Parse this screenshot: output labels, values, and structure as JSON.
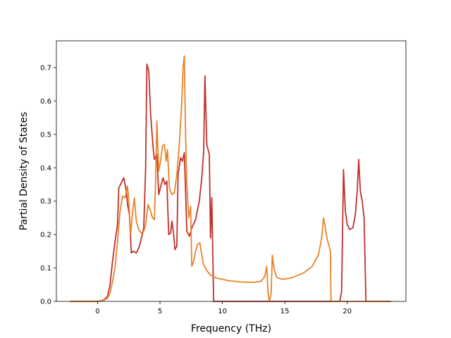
{
  "chart_data": {
    "type": "line",
    "xlabel": "Frequency (THz)",
    "ylabel": "Partial Density of States",
    "xlim": [
      -3.3,
      24.7
    ],
    "ylim": [
      0,
      0.78
    ],
    "xticks": [
      0,
      5,
      10,
      15,
      20
    ],
    "yticks": [
      0.0,
      0.1,
      0.2,
      0.3,
      0.4,
      0.5,
      0.6,
      0.7
    ],
    "grid": false,
    "legend": "none",
    "series": [
      {
        "color": "#c0302a",
        "points": [
          [
            -2.2,
            0
          ],
          [
            0.0,
            0
          ],
          [
            0.5,
            0.004
          ],
          [
            0.8,
            0.015
          ],
          [
            1.0,
            0.05
          ],
          [
            1.2,
            0.12
          ],
          [
            1.4,
            0.18
          ],
          [
            1.6,
            0.23
          ],
          [
            1.7,
            0.34
          ],
          [
            1.9,
            0.355
          ],
          [
            2.1,
            0.37
          ],
          [
            2.3,
            0.33
          ],
          [
            2.4,
            0.29
          ],
          [
            2.55,
            0.26
          ],
          [
            2.7,
            0.145
          ],
          [
            2.85,
            0.15
          ],
          [
            3.1,
            0.145
          ],
          [
            3.3,
            0.16
          ],
          [
            3.45,
            0.18
          ],
          [
            3.7,
            0.22
          ],
          [
            3.85,
            0.4
          ],
          [
            3.95,
            0.71
          ],
          [
            4.1,
            0.69
          ],
          [
            4.25,
            0.56
          ],
          [
            4.45,
            0.46
          ],
          [
            4.55,
            0.425
          ],
          [
            4.75,
            0.44
          ],
          [
            4.9,
            0.32
          ],
          [
            5.1,
            0.35
          ],
          [
            5.25,
            0.37
          ],
          [
            5.4,
            0.35
          ],
          [
            5.55,
            0.36
          ],
          [
            5.7,
            0.2
          ],
          [
            5.85,
            0.205
          ],
          [
            5.95,
            0.24
          ],
          [
            6.1,
            0.2
          ],
          [
            6.2,
            0.155
          ],
          [
            6.35,
            0.165
          ],
          [
            6.45,
            0.38
          ],
          [
            6.65,
            0.43
          ],
          [
            6.8,
            0.42
          ],
          [
            6.95,
            0.445
          ],
          [
            7.05,
            0.33
          ],
          [
            7.15,
            0.21
          ],
          [
            7.35,
            0.195
          ],
          [
            7.55,
            0.22
          ],
          [
            7.85,
            0.245
          ],
          [
            8.15,
            0.3
          ],
          [
            8.35,
            0.37
          ],
          [
            8.5,
            0.45
          ],
          [
            8.6,
            0.675
          ],
          [
            8.75,
            0.47
          ],
          [
            8.95,
            0.44
          ],
          [
            9.05,
            0.19
          ],
          [
            9.15,
            0.31
          ],
          [
            9.3,
            0.0
          ],
          [
            19.4,
            0.0
          ],
          [
            19.55,
            0.03
          ],
          [
            19.7,
            0.395
          ],
          [
            19.85,
            0.27
          ],
          [
            20.0,
            0.23
          ],
          [
            20.2,
            0.215
          ],
          [
            20.45,
            0.22
          ],
          [
            20.65,
            0.26
          ],
          [
            20.8,
            0.33
          ],
          [
            20.92,
            0.425
          ],
          [
            21.05,
            0.33
          ],
          [
            21.2,
            0.3
          ],
          [
            21.35,
            0.25
          ],
          [
            21.5,
            0.0
          ],
          [
            23.5,
            0.0
          ]
        ]
      },
      {
        "color": "#e8832a",
        "points": [
          [
            -2.2,
            0
          ],
          [
            0.0,
            0
          ],
          [
            0.5,
            0.003
          ],
          [
            0.8,
            0.01
          ],
          [
            1.0,
            0.025
          ],
          [
            1.2,
            0.06
          ],
          [
            1.4,
            0.1
          ],
          [
            1.6,
            0.18
          ],
          [
            1.8,
            0.27
          ],
          [
            2.0,
            0.315
          ],
          [
            2.2,
            0.31
          ],
          [
            2.4,
            0.345
          ],
          [
            2.5,
            0.3
          ],
          [
            2.65,
            0.2
          ],
          [
            2.8,
            0.265
          ],
          [
            2.95,
            0.31
          ],
          [
            3.1,
            0.24
          ],
          [
            3.3,
            0.215
          ],
          [
            3.5,
            0.205
          ],
          [
            3.7,
            0.21
          ],
          [
            3.85,
            0.23
          ],
          [
            4.05,
            0.29
          ],
          [
            4.25,
            0.27
          ],
          [
            4.4,
            0.25
          ],
          [
            4.55,
            0.245
          ],
          [
            4.65,
            0.36
          ],
          [
            4.75,
            0.54
          ],
          [
            4.9,
            0.39
          ],
          [
            5.05,
            0.42
          ],
          [
            5.2,
            0.465
          ],
          [
            5.35,
            0.47
          ],
          [
            5.5,
            0.42
          ],
          [
            5.6,
            0.455
          ],
          [
            5.75,
            0.34
          ],
          [
            5.95,
            0.32
          ],
          [
            6.15,
            0.325
          ],
          [
            6.35,
            0.38
          ],
          [
            6.55,
            0.47
          ],
          [
            6.75,
            0.6
          ],
          [
            6.85,
            0.7
          ],
          [
            6.95,
            0.735
          ],
          [
            7.05,
            0.5
          ],
          [
            7.15,
            0.35
          ],
          [
            7.3,
            0.25
          ],
          [
            7.45,
            0.285
          ],
          [
            7.55,
            0.105
          ],
          [
            7.7,
            0.12
          ],
          [
            7.85,
            0.15
          ],
          [
            8.0,
            0.17
          ],
          [
            8.2,
            0.175
          ],
          [
            8.45,
            0.115
          ],
          [
            8.7,
            0.095
          ],
          [
            9.0,
            0.08
          ],
          [
            9.5,
            0.07
          ],
          [
            10.5,
            0.062
          ],
          [
            11.5,
            0.058
          ],
          [
            12.5,
            0.057
          ],
          [
            13.1,
            0.06
          ],
          [
            13.4,
            0.075
          ],
          [
            13.55,
            0.105
          ],
          [
            13.65,
            0.03
          ],
          [
            13.75,
            0.0
          ],
          [
            13.9,
            0.02
          ],
          [
            14.0,
            0.138
          ],
          [
            14.15,
            0.095
          ],
          [
            14.35,
            0.072
          ],
          [
            14.8,
            0.066
          ],
          [
            15.5,
            0.07
          ],
          [
            16.5,
            0.085
          ],
          [
            17.2,
            0.105
          ],
          [
            17.7,
            0.14
          ],
          [
            17.95,
            0.19
          ],
          [
            18.1,
            0.25
          ],
          [
            18.25,
            0.22
          ],
          [
            18.4,
            0.185
          ],
          [
            18.55,
            0.165
          ],
          [
            18.65,
            0.15
          ],
          [
            18.7,
            0.0
          ],
          [
            20.8,
            0.0
          ],
          [
            23.5,
            0.0
          ]
        ]
      }
    ]
  }
}
